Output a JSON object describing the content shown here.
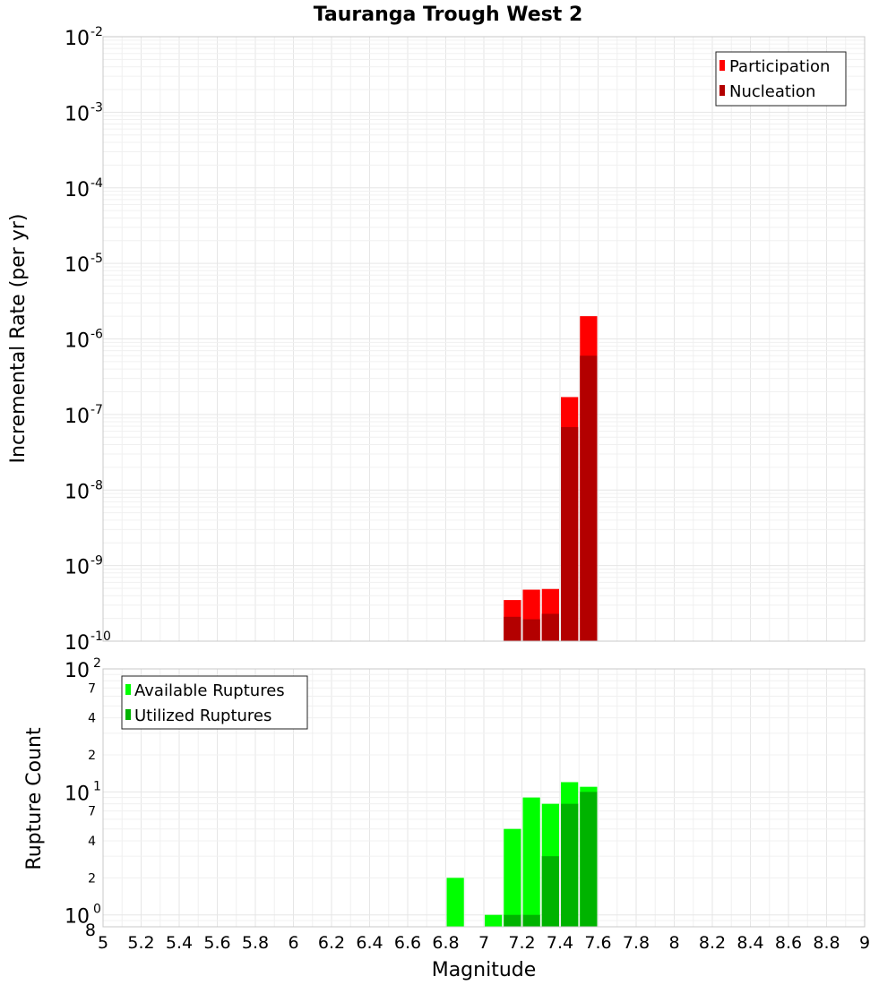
{
  "chart_data": [
    {
      "type": "bar",
      "panel": "top",
      "title": "Tauranga Trough West 2",
      "xlabel": "Magnitude",
      "ylabel": "Incremental Rate (per yr)",
      "yscale": "log",
      "ylim": [
        1e-10,
        0.01
      ],
      "xlim": [
        5,
        9
      ],
      "y_tick_exponents": [
        -2,
        -3,
        -4,
        -5,
        -6,
        -7,
        -8,
        -9,
        -10
      ],
      "y_tick_base": "10",
      "legend_position": "top-right",
      "series": [
        {
          "name": "Participation",
          "color": "#ff0000",
          "x": [
            7.15,
            7.25,
            7.35,
            7.45,
            7.55
          ],
          "values": [
            3.5e-10,
            4.8e-10,
            4.9e-10,
            1.7e-07,
            2e-06
          ]
        },
        {
          "name": "Nucleation",
          "color": "#b30000",
          "x": [
            7.15,
            7.25,
            7.35,
            7.45,
            7.55
          ],
          "values": [
            2.1e-10,
            1.95e-10,
            2.3e-10,
            6.8e-08,
            6e-07
          ]
        }
      ]
    },
    {
      "type": "bar",
      "panel": "bottom",
      "xlabel": "Magnitude",
      "ylabel": "Rupture Count",
      "yscale": "log",
      "ylim": [
        0.8,
        100
      ],
      "xlim": [
        5,
        9
      ],
      "legend_position": "top-left",
      "y_major_labels": [
        {
          "base": "10",
          "exp": "2",
          "value": 100
        },
        {
          "base": "10",
          "exp": "1",
          "value": 10
        },
        {
          "base": "10",
          "exp": "0",
          "value": 1
        }
      ],
      "y_minor_labels": [
        "7",
        "4",
        "2",
        "7",
        "4",
        "2",
        "8"
      ],
      "y_minor_values": [
        70,
        40,
        20,
        7,
        4,
        2,
        0.8
      ],
      "series": [
        {
          "name": "Available Ruptures",
          "color": "#00ff00",
          "x": [
            6.85,
            7.05,
            7.15,
            7.25,
            7.35,
            7.45,
            7.55
          ],
          "values": [
            2,
            1,
            5,
            9,
            8,
            12,
            11
          ]
        },
        {
          "name": "Utilized Ruptures",
          "color": "#00b300",
          "x": [
            7.15,
            7.25,
            7.35,
            7.45,
            7.55
          ],
          "values": [
            1,
            1,
            3,
            8,
            10
          ]
        }
      ]
    }
  ],
  "x_tick_labels": [
    "5",
    "5.2",
    "5.4",
    "5.6",
    "5.8",
    "6",
    "6.2",
    "6.4",
    "6.6",
    "6.8",
    "7",
    "7.2",
    "7.4",
    "7.6",
    "7.8",
    "8",
    "8.2",
    "8.4",
    "8.6",
    "8.8",
    "9"
  ],
  "bin_width": 0.1
}
